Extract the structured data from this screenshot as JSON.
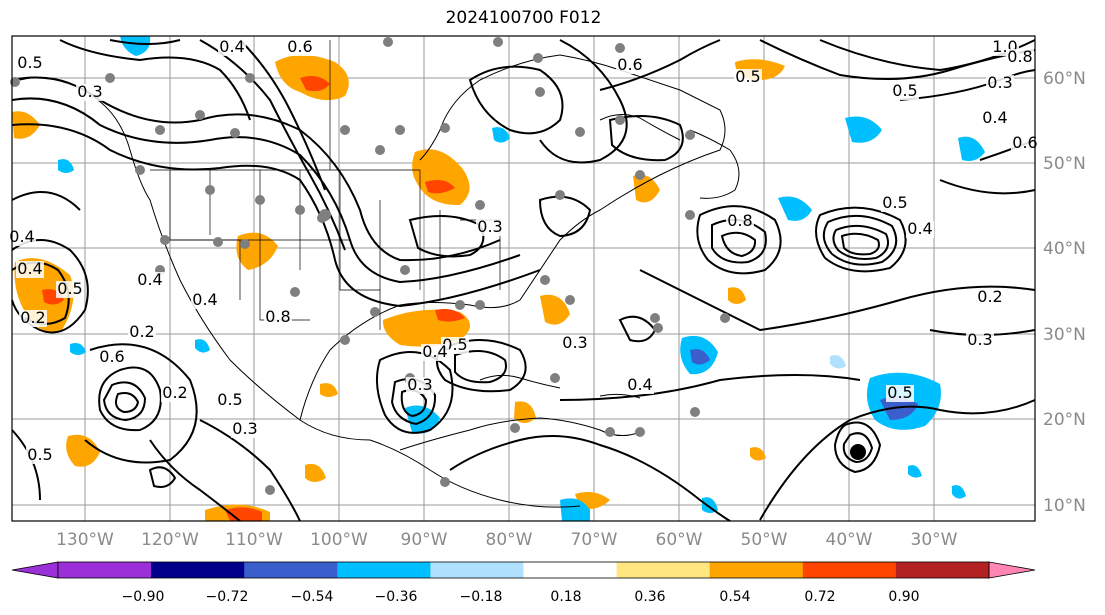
{
  "title": "2024100700 F012",
  "map": {
    "lon_labels": [
      "130°W",
      "120°W",
      "110°W",
      "100°W",
      "90°W",
      "80°W",
      "70°W",
      "60°W",
      "50°W",
      "40°W",
      "30°W"
    ],
    "lat_labels": [
      "60°N",
      "50°N",
      "40°N",
      "30°N",
      "20°N",
      "10°N"
    ],
    "contour_labels": [
      "0.4",
      "0.6",
      "0.5",
      "0.3",
      "1.0",
      "0.8",
      "0.3",
      "0.4",
      "0.6",
      "0.5",
      "0.6",
      "0.5",
      "0.4",
      "0.5",
      "0.4",
      "0.2",
      "0.4",
      "0.6",
      "0.8",
      "0.2",
      "0.4",
      "0.5",
      "0.3",
      "0.5",
      "0.3",
      "0.4",
      "0.5",
      "0.3",
      "0.2",
      "0.3",
      "0.2",
      "0.5",
      "0.8",
      "0.5",
      "0.4",
      "0.3",
      "0.4"
    ]
  },
  "colorbar": {
    "ticks": [
      "−0.90",
      "−0.72",
      "−0.54",
      "−0.36",
      "−0.18",
      "0.18",
      "0.36",
      "0.54",
      "0.72",
      "0.90"
    ],
    "colors": [
      "#9b30d9",
      "#00008b",
      "#3a5fcd",
      "#00bfff",
      "#b0e2ff",
      "#ffffff",
      "#ffe680",
      "#ffa500",
      "#ff4500",
      "#b22222",
      "#ff85b3"
    ]
  }
}
